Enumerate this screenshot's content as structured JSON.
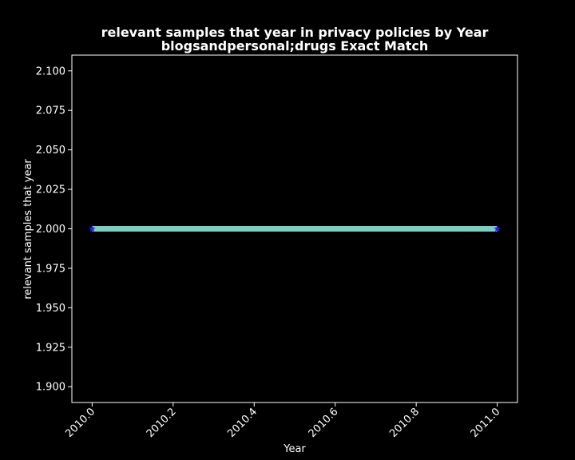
{
  "chart_data": {
    "type": "line",
    "title": "relevant samples that year in privacy policies by Year",
    "subtitle": "blogsandpersonal;drugs Exact Match",
    "xlabel": "Year",
    "ylabel": "relevant samples that year",
    "xlim": [
      2009.95,
      2011.05
    ],
    "ylim": [
      1.89,
      2.11
    ],
    "xticks": [
      2010.0,
      2010.2,
      2010.4,
      2010.6,
      2010.8,
      2011.0
    ],
    "xtick_labels": [
      "2010.0",
      "2010.2",
      "2010.4",
      "2010.6",
      "2010.8",
      "2011.0"
    ],
    "yticks": [
      1.9,
      1.925,
      1.95,
      1.975,
      2.0,
      2.025,
      2.05,
      2.075,
      2.1
    ],
    "ytick_labels": [
      "1.900",
      "1.925",
      "1.950",
      "1.975",
      "2.000",
      "2.025",
      "2.050",
      "2.075",
      "2.100"
    ],
    "grid": false,
    "background": "#000000",
    "series": [
      {
        "x": [
          2010,
          2011
        ],
        "y": [
          2,
          2
        ],
        "line_color": "#7fcdc0",
        "marker": "star",
        "marker_color": "#1f1fff"
      }
    ]
  }
}
